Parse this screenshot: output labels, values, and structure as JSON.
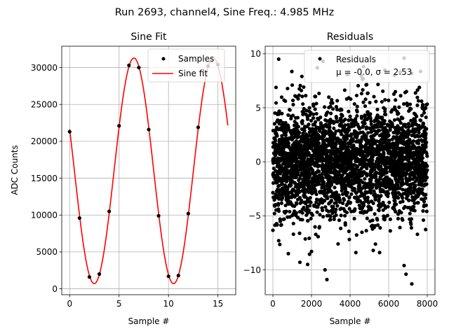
{
  "suptitle": "Run 2693, channel4, Sine Freq.: 4.985 MHz",
  "colors": {
    "fit": "#ff0000",
    "points": "#000000",
    "grid": "#b0b0b0"
  },
  "chart_data": [
    {
      "type": "line",
      "title": "Sine Fit",
      "xlabel": "Sample #",
      "ylabel": "ADC Counts",
      "xlim": [
        -0.8,
        16.8
      ],
      "ylim": [
        -800,
        32900
      ],
      "xticks": [
        0,
        5,
        10,
        15
      ],
      "yticks": [
        0,
        5000,
        10000,
        15000,
        20000,
        25000,
        30000
      ],
      "grid": true,
      "legend_position": "top-right",
      "series": [
        {
          "name": "Samples",
          "style": "points",
          "x": [
            0,
            1,
            2,
            3,
            4,
            5,
            6,
            7,
            8,
            9,
            10,
            11,
            12,
            13,
            14,
            15
          ],
          "y": [
            21300,
            9600,
            1600,
            2000,
            10500,
            22100,
            30300,
            30000,
            21600,
            9900,
            1700,
            1800,
            10200,
            21900,
            30200,
            30400
          ]
        },
        {
          "name": "Sine fit",
          "style": "line",
          "model": {
            "offset": 16000,
            "amplitude": 15300,
            "period": 8.024,
            "peak_at": 6.5,
            "x_range": [
              0,
              16
            ]
          }
        }
      ]
    },
    {
      "type": "scatter",
      "title": "Residuals",
      "xlabel": "Sample #",
      "ylabel": "",
      "xlim": [
        -400,
        8400
      ],
      "ylim": [
        -12.3,
        10.7
      ],
      "xticks": [
        0,
        2000,
        4000,
        6000,
        8000
      ],
      "yticks": [
        -10,
        -5,
        0,
        5,
        10
      ],
      "grid": true,
      "legend_position": "top-right",
      "series": [
        {
          "name": "Residuals",
          "stats_label": "μ = -0.0, σ = 2.53",
          "mean": 0.0,
          "std": 2.53,
          "x_range": [
            0,
            8000
          ],
          "outliers": [
            {
              "x": 300,
              "y": 9.5
            },
            {
              "x": 2800,
              "y": -10.9
            },
            {
              "x": 7200,
              "y": -11.3
            },
            {
              "x": 6800,
              "y": 9.6
            },
            {
              "x": 2600,
              "y": 9.3
            },
            {
              "x": 2300,
              "y": 8.7
            },
            {
              "x": 1800,
              "y": -9.5
            },
            {
              "x": 1400,
              "y": -9.3
            },
            {
              "x": 6800,
              "y": -9.6
            },
            {
              "x": 6900,
              "y": -10.4
            },
            {
              "x": 2700,
              "y": -10.0
            },
            {
              "x": 4700,
              "y": 8.8
            },
            {
              "x": 7200,
              "y": 8.2
            },
            {
              "x": 6300,
              "y": 8.0
            },
            {
              "x": 3900,
              "y": 8.1
            },
            {
              "x": 1500,
              "y": 7.9
            },
            {
              "x": 800,
              "y": -8.5
            },
            {
              "x": 4300,
              "y": -8.4
            },
            {
              "x": 5800,
              "y": 8.5
            },
            {
              "x": 6600,
              "y": 8.3
            },
            {
              "x": 1000,
              "y": 7.1
            },
            {
              "x": 300,
              "y": -7.3
            },
            {
              "x": 2000,
              "y": -8.3
            },
            {
              "x": 5200,
              "y": -8.2
            }
          ]
        }
      ]
    }
  ]
}
